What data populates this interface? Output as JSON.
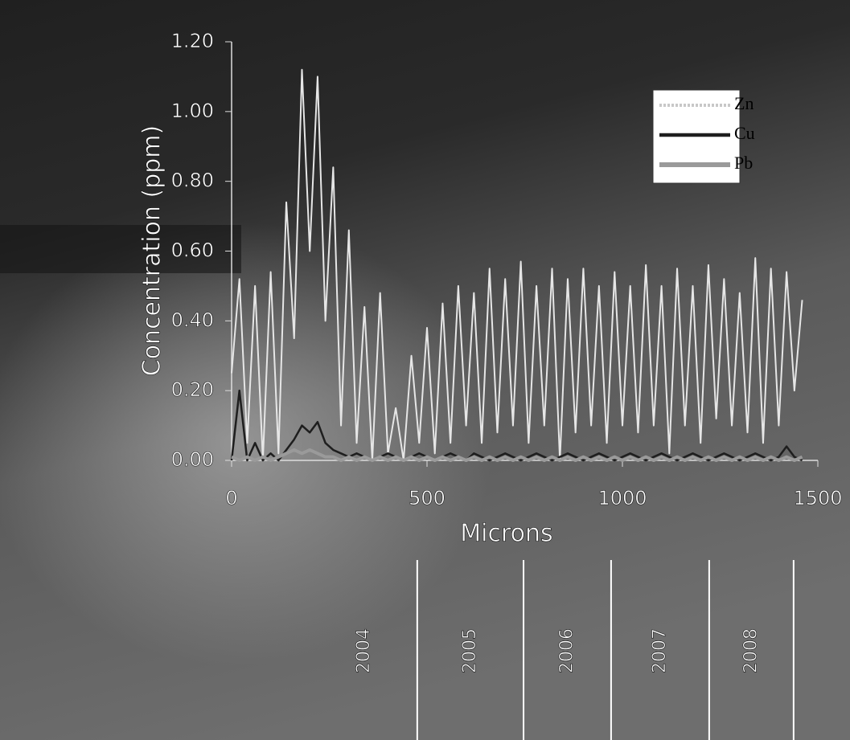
{
  "chart_data": {
    "type": "line",
    "ylabel": "Concentration (ppm)",
    "xlabel": "Microns",
    "xlim": [
      0,
      1500
    ],
    "xticks": [
      0,
      500,
      1000,
      1500
    ],
    "ylim": [
      0,
      1.2
    ],
    "yticks": [
      {
        "value": 0,
        "label": "0.00"
      },
      {
        "value": 0.2,
        "label": "0.20"
      },
      {
        "value": 0.4,
        "label": "0.40"
      },
      {
        "value": 0.6,
        "label": "0.60"
      },
      {
        "value": 0.8,
        "label": "0.80"
      },
      {
        "value": 1.0,
        "label": "1.00"
      },
      {
        "value": 1.2,
        "label": "1.20"
      }
    ],
    "legend": "upper right",
    "x": [
      0,
      20,
      40,
      60,
      80,
      100,
      120,
      140,
      160,
      180,
      200,
      220,
      240,
      260,
      280,
      300,
      320,
      340,
      360,
      380,
      400,
      420,
      440,
      460,
      480,
      500,
      520,
      540,
      560,
      580,
      600,
      620,
      640,
      660,
      680,
      700,
      720,
      740,
      760,
      780,
      800,
      820,
      840,
      860,
      880,
      900,
      920,
      940,
      960,
      980,
      1000,
      1020,
      1040,
      1060,
      1080,
      1100,
      1120,
      1140,
      1160,
      1180,
      1200,
      1220,
      1240,
      1260,
      1280,
      1300,
      1320,
      1340,
      1360,
      1380,
      1400,
      1420,
      1440,
      1460
    ],
    "series": [
      {
        "name": "Zn",
        "color": "#e6e6e6",
        "values": [
          0.25,
          0.52,
          0.05,
          0.5,
          0.0,
          0.54,
          0.02,
          0.74,
          0.35,
          1.12,
          0.6,
          1.1,
          0.4,
          0.84,
          0.1,
          0.66,
          0.05,
          0.44,
          0.0,
          0.48,
          0.02,
          0.15,
          0.0,
          0.3,
          0.05,
          0.38,
          0.02,
          0.45,
          0.05,
          0.5,
          0.1,
          0.48,
          0.05,
          0.55,
          0.08,
          0.52,
          0.1,
          0.57,
          0.05,
          0.5,
          0.1,
          0.55,
          0.0,
          0.52,
          0.08,
          0.55,
          0.1,
          0.5,
          0.05,
          0.54,
          0.1,
          0.5,
          0.08,
          0.56,
          0.1,
          0.5,
          0.02,
          0.55,
          0.1,
          0.5,
          0.05,
          0.56,
          0.12,
          0.52,
          0.1,
          0.48,
          0.08,
          0.58,
          0.05,
          0.55,
          0.1,
          0.54,
          0.2,
          0.46
        ]
      },
      {
        "name": "Cu",
        "color": "#1e1e1e",
        "values": [
          0.0,
          0.2,
          0.0,
          0.05,
          0.0,
          0.02,
          0.0,
          0.03,
          0.06,
          0.1,
          0.08,
          0.11,
          0.05,
          0.03,
          0.02,
          0.01,
          0.02,
          0.01,
          0.0,
          0.01,
          0.02,
          0.01,
          0.0,
          0.01,
          0.02,
          0.01,
          0.0,
          0.01,
          0.02,
          0.01,
          0.0,
          0.02,
          0.01,
          0.0,
          0.01,
          0.02,
          0.01,
          0.0,
          0.01,
          0.02,
          0.01,
          0.0,
          0.01,
          0.02,
          0.01,
          0.0,
          0.01,
          0.02,
          0.01,
          0.0,
          0.01,
          0.02,
          0.01,
          0.0,
          0.01,
          0.02,
          0.01,
          0.0,
          0.01,
          0.02,
          0.01,
          0.0,
          0.01,
          0.02,
          0.01,
          0.0,
          0.01,
          0.02,
          0.01,
          0.0,
          0.01,
          0.04,
          0.01,
          0.0
        ]
      },
      {
        "name": "Pb",
        "color": "#9a9a9a",
        "values": [
          0.01,
          0.0,
          0.01,
          0.0,
          0.01,
          0.0,
          0.01,
          0.02,
          0.03,
          0.02,
          0.03,
          0.02,
          0.01,
          0.01,
          0.0,
          0.01,
          0.0,
          0.01,
          0.0,
          0.01,
          0.0,
          0.01,
          0.0,
          0.01,
          0.0,
          0.01,
          0.0,
          0.01,
          0.0,
          0.01,
          0.0,
          0.01,
          0.0,
          0.01,
          0.0,
          0.01,
          0.0,
          0.01,
          0.0,
          0.01,
          0.0,
          0.01,
          0.0,
          0.01,
          0.0,
          0.01,
          0.0,
          0.01,
          0.0,
          0.01,
          0.0,
          0.01,
          0.0,
          0.01,
          0.0,
          0.01,
          0.0,
          0.01,
          0.0,
          0.01,
          0.0,
          0.01,
          0.0,
          0.01,
          0.0,
          0.01,
          0.0,
          0.01,
          0.0,
          0.01,
          0.0,
          0.01,
          0.0,
          0.01
        ]
      }
    ],
    "year_labels": [
      "2004",
      "2005",
      "2006",
      "2007",
      "2008"
    ],
    "year_boundaries": [
      475,
      747,
      971,
      1222,
      1438
    ]
  }
}
